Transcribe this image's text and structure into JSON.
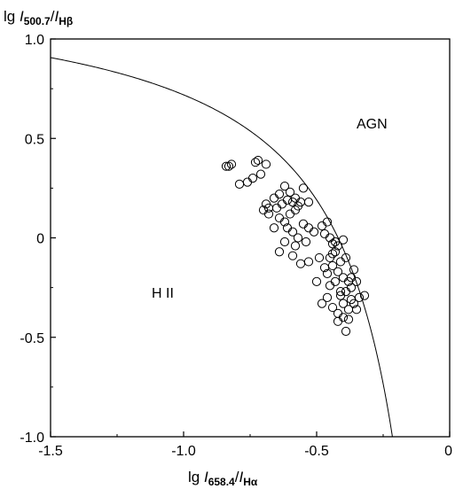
{
  "chart_data": {
    "type": "scatter",
    "title": "",
    "xlabel": {
      "prefix": "lg ",
      "num": "I",
      "num_sub": "658.4",
      "sep": "/",
      "den": "I",
      "den_sub": "Hα"
    },
    "ylabel": {
      "prefix": "lg ",
      "num": "I",
      "num_sub": "500.7",
      "sep": "/",
      "den": "I",
      "den_sub": "Hβ"
    },
    "xlim": [
      -1.5,
      0
    ],
    "ylim": [
      -1.0,
      1.0
    ],
    "x_ticks": [
      {
        "value": -1.5,
        "label": "-1.5"
      },
      {
        "value": -1.0,
        "label": "-1.0"
      },
      {
        "value": -0.5,
        "label": "-0.5"
      },
      {
        "value": 0,
        "label": "0"
      }
    ],
    "y_ticks": [
      {
        "value": 1.0,
        "label": "1.0"
      },
      {
        "value": 0.5,
        "label": "0.5"
      },
      {
        "value": 0,
        "label": "0"
      },
      {
        "value": -0.5,
        "label": "-0.5"
      },
      {
        "value": -1.0,
        "label": "-1.0"
      }
    ],
    "grid": false,
    "annotations": [
      {
        "text": "AGN",
        "x": -0.35,
        "y": 0.55
      },
      {
        "text": "H II",
        "x": -1.12,
        "y": -0.3
      }
    ],
    "curve": {
      "formula": "y = 0.61 / (x - 0.05) + 1.3",
      "x_start": -1.5,
      "x_end": -0.2
    },
    "series": [
      {
        "marker": "open-circle",
        "points": [
          [
            -0.84,
            0.36
          ],
          [
            -0.83,
            0.36
          ],
          [
            -0.82,
            0.37
          ],
          [
            -0.73,
            0.38
          ],
          [
            -0.72,
            0.39
          ],
          [
            -0.74,
            0.3
          ],
          [
            -0.76,
            0.28
          ],
          [
            -0.79,
            0.27
          ],
          [
            -0.69,
            0.37
          ],
          [
            -0.71,
            0.32
          ],
          [
            -0.62,
            0.26
          ],
          [
            -0.64,
            0.22
          ],
          [
            -0.66,
            0.2
          ],
          [
            -0.6,
            0.23
          ],
          [
            -0.58,
            0.2
          ],
          [
            -0.56,
            0.18
          ],
          [
            -0.55,
            0.25
          ],
          [
            -0.53,
            0.18
          ],
          [
            -0.57,
            0.16
          ],
          [
            -0.59,
            0.18
          ],
          [
            -0.61,
            0.19
          ],
          [
            -0.63,
            0.17
          ],
          [
            -0.68,
            0.15
          ],
          [
            -0.7,
            0.14
          ],
          [
            -0.69,
            0.17
          ],
          [
            -0.64,
            0.1
          ],
          [
            -0.62,
            0.08
          ],
          [
            -0.6,
            0.12
          ],
          [
            -0.58,
            0.14
          ],
          [
            -0.61,
            0.05
          ],
          [
            -0.59,
            0.03
          ],
          [
            -0.55,
            0.07
          ],
          [
            -0.53,
            0.05
          ],
          [
            -0.57,
            0.0
          ],
          [
            -0.54,
            -0.02
          ],
          [
            -0.62,
            -0.02
          ],
          [
            -0.64,
            -0.07
          ],
          [
            -0.59,
            -0.09
          ],
          [
            -0.56,
            -0.13
          ],
          [
            -0.53,
            -0.12
          ],
          [
            -0.49,
            -0.1
          ],
          [
            -0.47,
            0.02
          ],
          [
            -0.45,
            0.0
          ],
          [
            -0.46,
            0.08
          ],
          [
            -0.48,
            0.06
          ],
          [
            -0.44,
            -0.03
          ],
          [
            -0.42,
            -0.04
          ],
          [
            -0.4,
            -0.01
          ],
          [
            -0.43,
            -0.07
          ],
          [
            -0.45,
            -0.1
          ],
          [
            -0.47,
            -0.15
          ],
          [
            -0.44,
            -0.14
          ],
          [
            -0.41,
            -0.12
          ],
          [
            -0.39,
            -0.1
          ],
          [
            -0.42,
            -0.17
          ],
          [
            -0.4,
            -0.2
          ],
          [
            -0.38,
            -0.22
          ],
          [
            -0.36,
            -0.16
          ],
          [
            -0.37,
            -0.25
          ],
          [
            -0.39,
            -0.27
          ],
          [
            -0.41,
            -0.27
          ],
          [
            -0.43,
            -0.22
          ],
          [
            -0.45,
            -0.24
          ],
          [
            -0.46,
            -0.3
          ],
          [
            -0.44,
            -0.35
          ],
          [
            -0.42,
            -0.38
          ],
          [
            -0.4,
            -0.4
          ],
          [
            -0.42,
            -0.42
          ],
          [
            -0.38,
            -0.41
          ],
          [
            -0.39,
            -0.47
          ],
          [
            -0.36,
            -0.33
          ],
          [
            -0.34,
            -0.3
          ],
          [
            -0.32,
            -0.29
          ],
          [
            -0.35,
            -0.36
          ],
          [
            -0.37,
            -0.31
          ],
          [
            -0.48,
            -0.33
          ],
          [
            -0.5,
            -0.22
          ],
          [
            -0.46,
            -0.18
          ],
          [
            -0.43,
            -0.02
          ],
          [
            -0.51,
            0.03
          ],
          [
            -0.66,
            0.05
          ],
          [
            -0.68,
            0.12
          ],
          [
            -0.58,
            -0.04
          ],
          [
            -0.65,
            0.15
          ],
          [
            -0.41,
            -0.29
          ],
          [
            -0.38,
            -0.36
          ],
          [
            -0.4,
            -0.33
          ],
          [
            -0.37,
            -0.2
          ],
          [
            -0.44,
            -0.08
          ],
          [
            -0.35,
            -0.22
          ]
        ]
      }
    ]
  }
}
